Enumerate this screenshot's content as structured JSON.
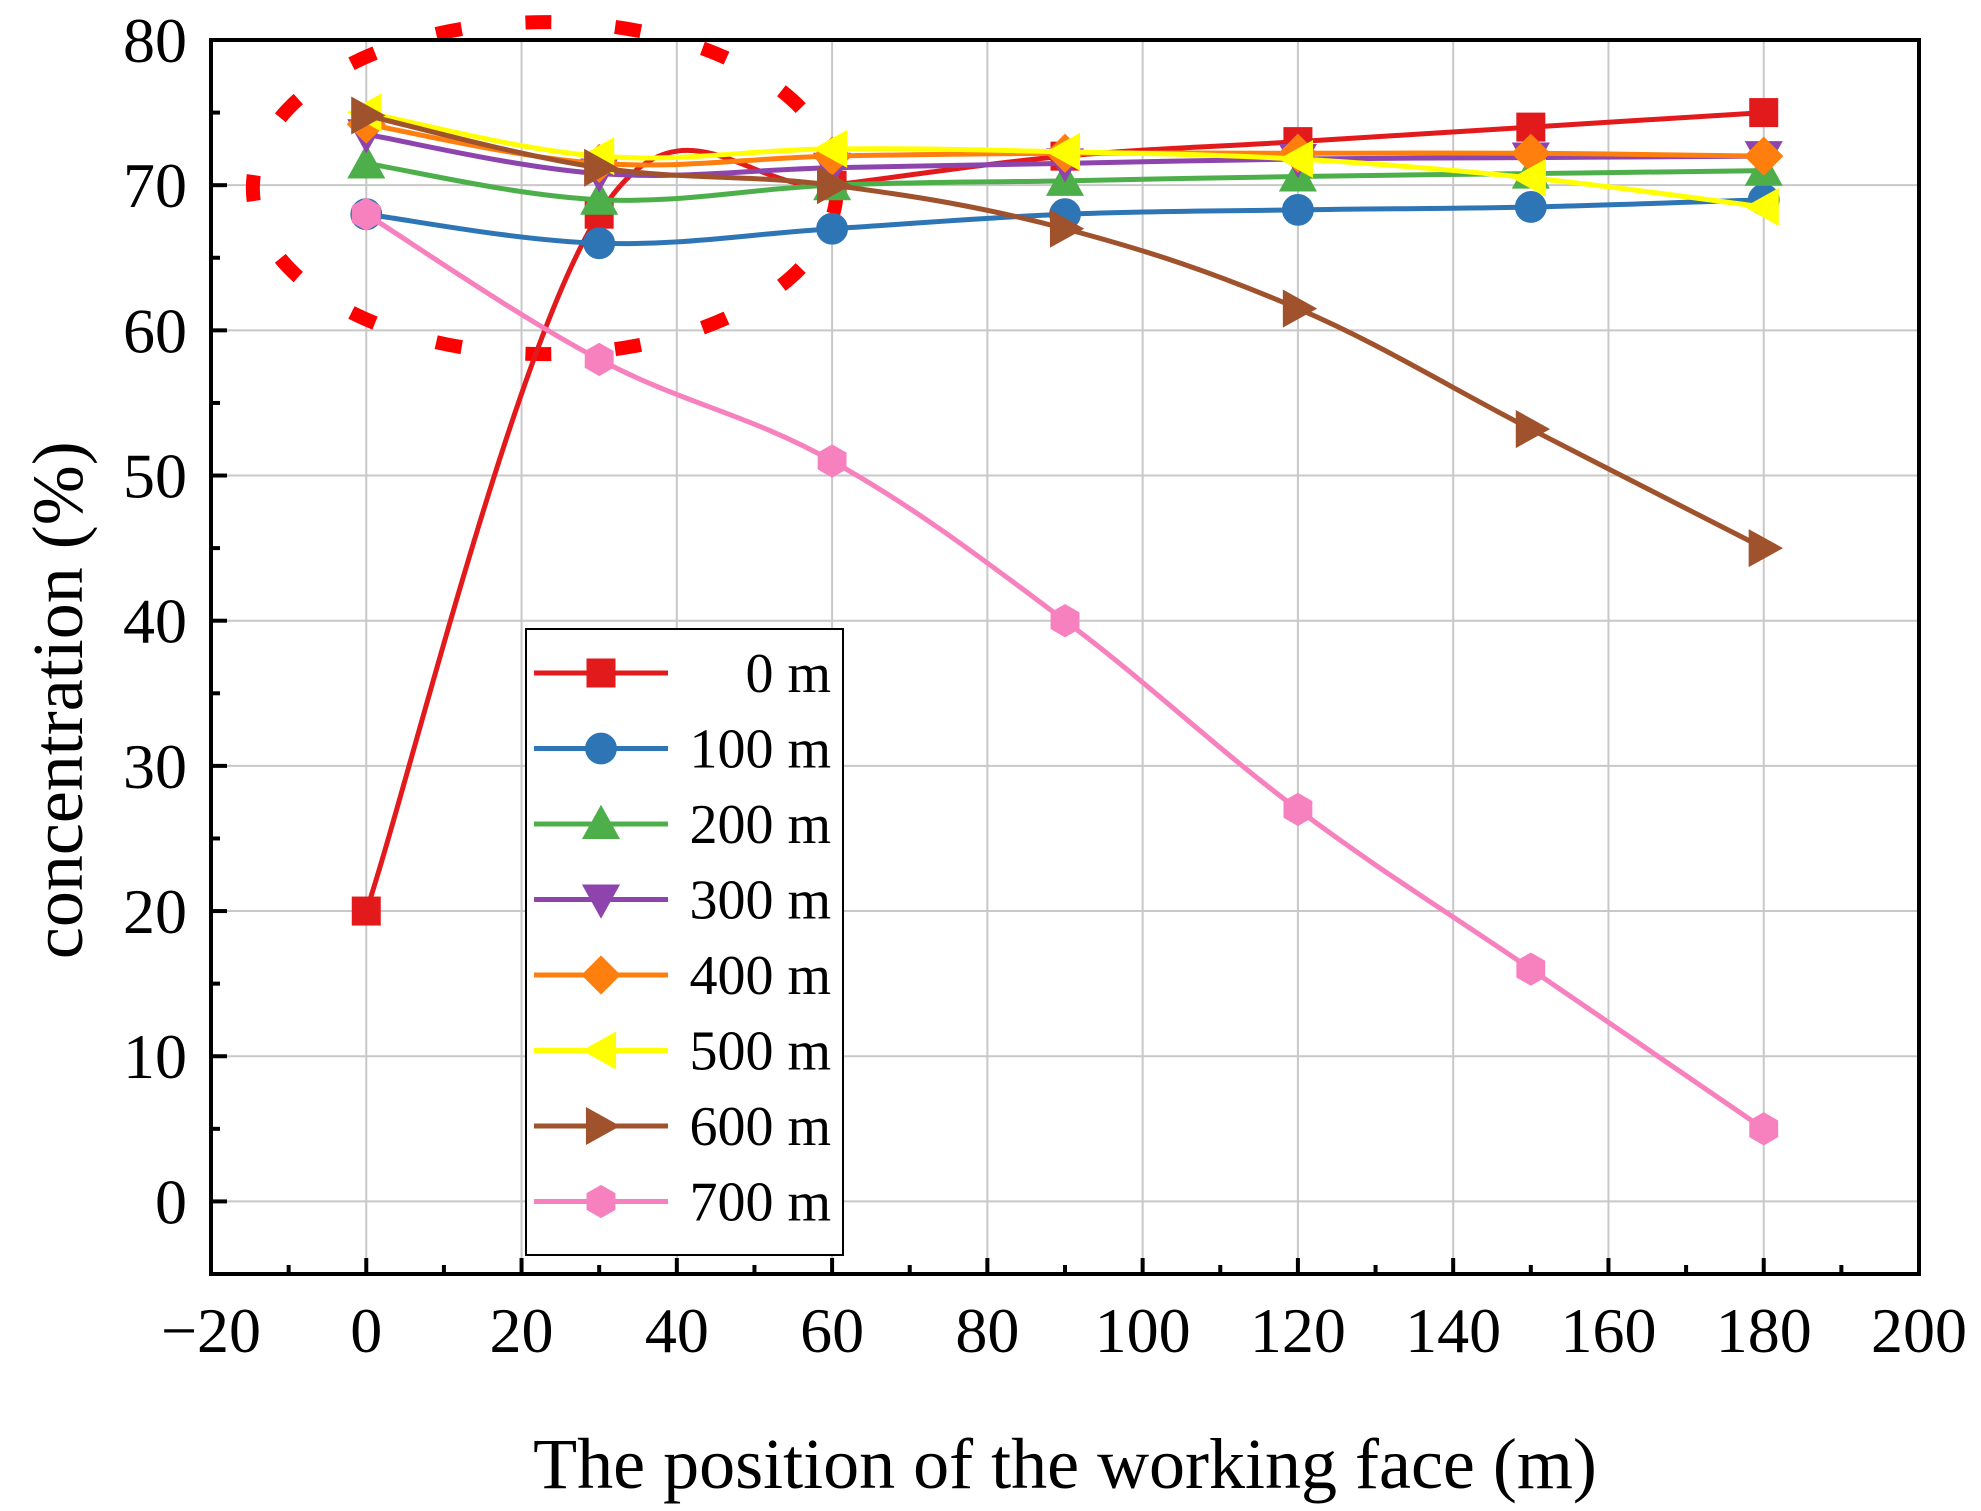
{
  "chart_data": {
    "type": "line",
    "title": "",
    "xlabel": "The position of the working face (m)",
    "ylabel": "concentration (%)",
    "xlim": [
      -20,
      200
    ],
    "ylim": [
      -5,
      80
    ],
    "x_ticks": [
      -20,
      0,
      20,
      40,
      60,
      80,
      100,
      120,
      140,
      160,
      180,
      200
    ],
    "x_tick_labels": [
      "−20",
      "0",
      "20",
      "40",
      "60",
      "80",
      "100",
      "120",
      "140",
      "160",
      "180",
      "200"
    ],
    "y_ticks": [
      0,
      10,
      20,
      30,
      40,
      50,
      60,
      70,
      80
    ],
    "y_tick_labels": [
      "0",
      "10",
      "20",
      "30",
      "40",
      "50",
      "60",
      "70",
      "80"
    ],
    "grid": true,
    "legend_position": "lower-left inside plot",
    "x": [
      0,
      30,
      60,
      90,
      120,
      150,
      180
    ],
    "series": [
      {
        "name": "0 m",
        "color": "#e31a1c",
        "marker": "square",
        "values": [
          20,
          68,
          70,
          72,
          73,
          74,
          75
        ]
      },
      {
        "name": "100 m",
        "color": "#2e75b6",
        "marker": "circle",
        "values": [
          68,
          66,
          67,
          68,
          68.3,
          68.5,
          69
        ]
      },
      {
        "name": "200 m",
        "color": "#4daf4a",
        "marker": "triangle-up",
        "values": [
          71.5,
          69,
          70,
          70.3,
          70.6,
          70.8,
          71
        ]
      },
      {
        "name": "300 m",
        "color": "#8e44ad",
        "marker": "triangle-down",
        "values": [
          73.5,
          70.8,
          71.2,
          71.5,
          71.8,
          71.9,
          72
        ]
      },
      {
        "name": "400 m",
        "color": "#ff7f0e",
        "marker": "diamond",
        "values": [
          74.2,
          71.5,
          72,
          72.2,
          72.2,
          72.2,
          72
        ]
      },
      {
        "name": "500 m",
        "color": "#ffff00",
        "marker": "triangle-left",
        "values": [
          75,
          72,
          72.5,
          72.3,
          71.8,
          70.5,
          68.5
        ]
      },
      {
        "name": "600 m",
        "color": "#a0522d",
        "marker": "triangle-right",
        "values": [
          74.8,
          71.2,
          70,
          67,
          61.5,
          53.2,
          45
        ]
      },
      {
        "name": "700 m",
        "color": "#f781bf",
        "marker": "hexagon",
        "values": [
          68,
          58,
          51,
          40,
          27,
          16,
          5
        ]
      }
    ],
    "annotation": {
      "type": "dashed-ellipse",
      "color": "#ff0000",
      "description": "highlighted region"
    }
  }
}
